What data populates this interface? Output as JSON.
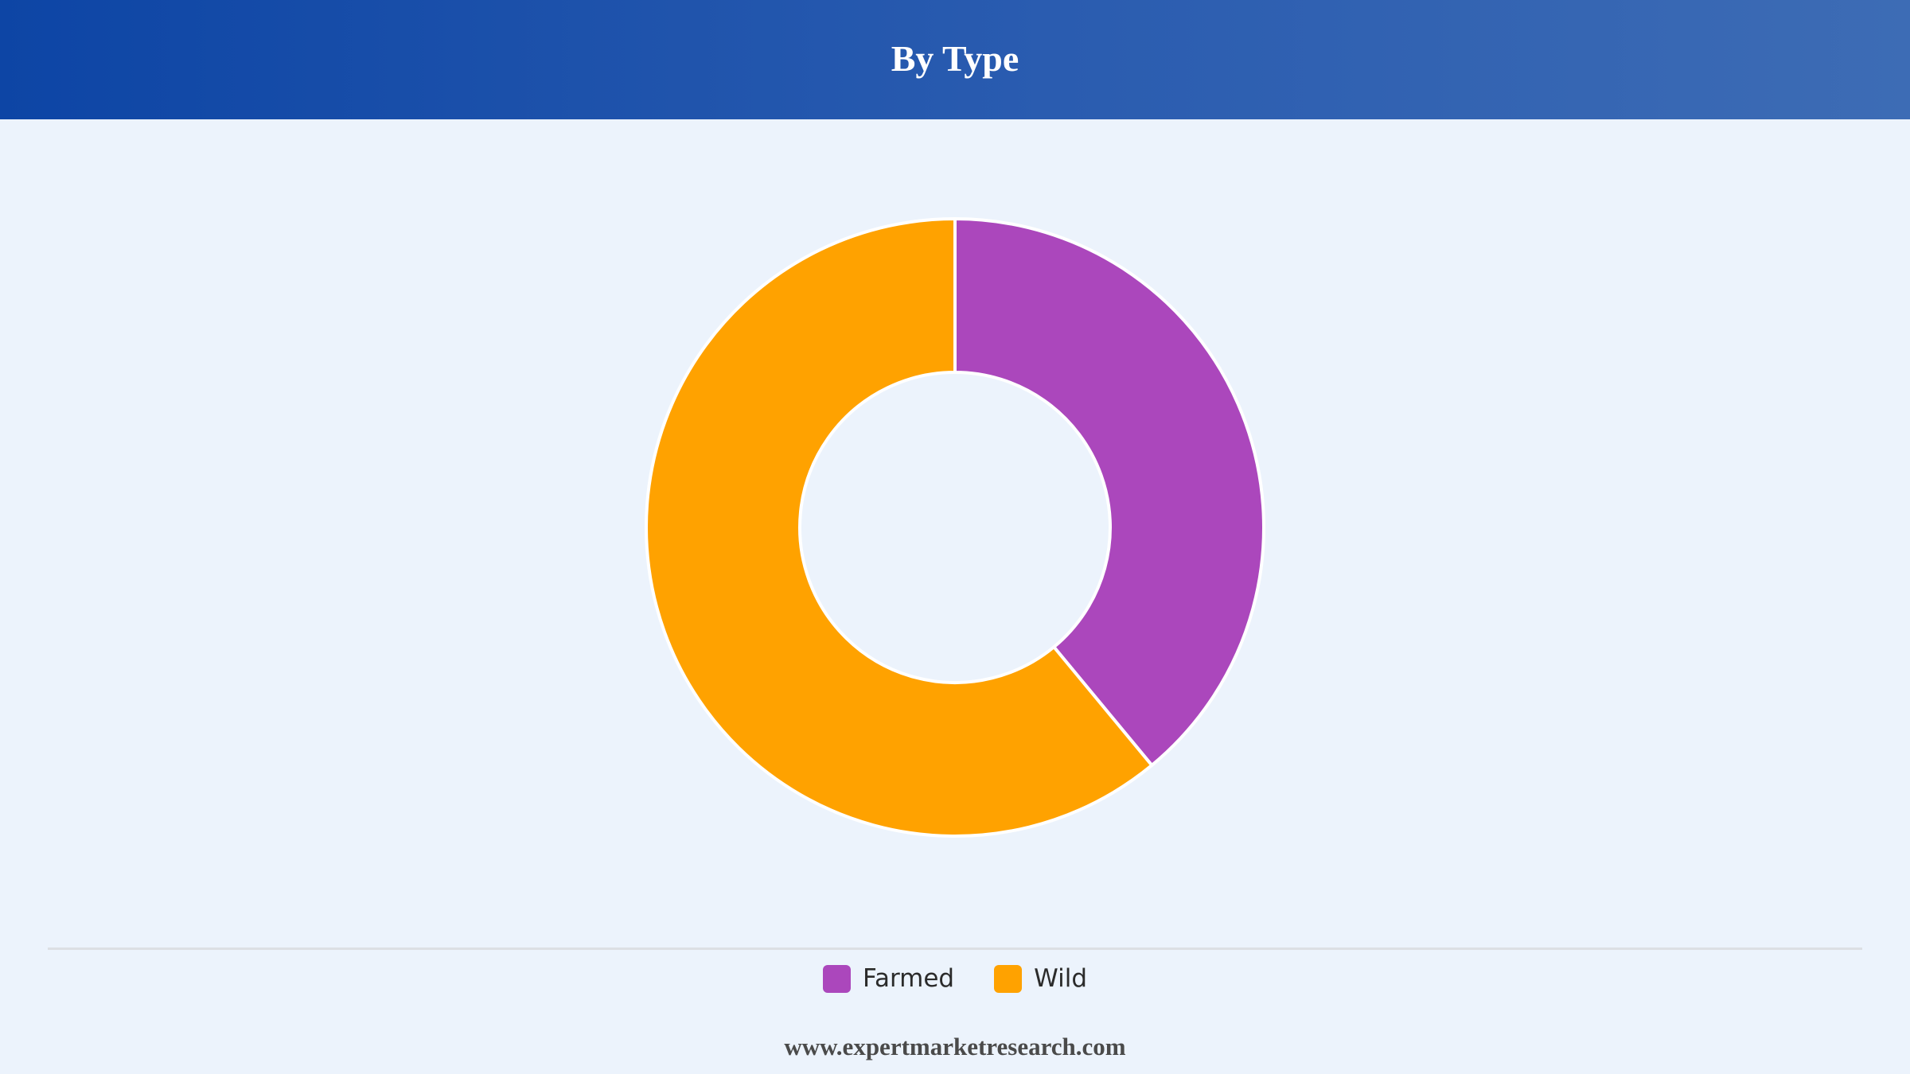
{
  "header": {
    "title": "By Type"
  },
  "chart_data": {
    "type": "pie",
    "title": "By Type",
    "donut": true,
    "categories": [
      "Farmed",
      "Wild"
    ],
    "values": [
      39,
      61
    ],
    "colors": [
      "#ab47bc",
      "#ffa200"
    ],
    "legend_position": "bottom"
  },
  "legend": {
    "items": [
      {
        "label": "Farmed",
        "color": "#ab47bc"
      },
      {
        "label": "Wild",
        "color": "#ffa200"
      }
    ]
  },
  "footer": {
    "source": "www.expertmarketresearch.com"
  }
}
